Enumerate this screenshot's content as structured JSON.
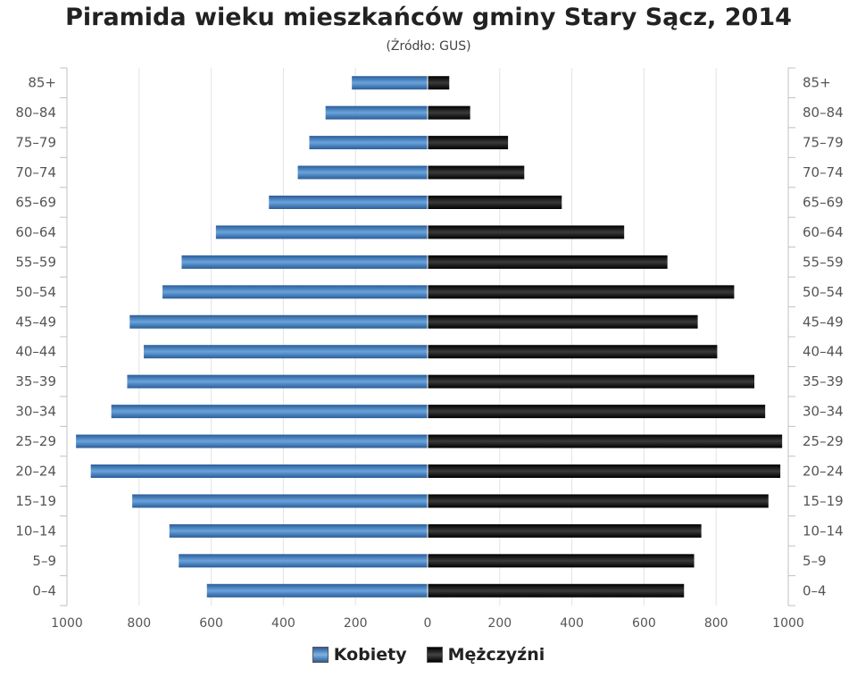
{
  "title": "Piramida wieku mieszkańców gminy Stary Sącz, 2014",
  "subtitle": "(Źródło: GUS)",
  "legend": {
    "female": "Kobiety",
    "male": "Mężczyźni"
  },
  "colors": {
    "female": "#3f7ec2",
    "male": "#111111",
    "grid": "#e3e3e3",
    "axis": "#c0c0c0",
    "text": "#555555"
  },
  "chart_data": {
    "type": "bar",
    "orientation": "horizontal-population-pyramid",
    "categories": [
      "0–4",
      "5–9",
      "10–14",
      "15–19",
      "20–24",
      "25–29",
      "30–34",
      "35–39",
      "40–44",
      "45–49",
      "50–54",
      "55–59",
      "60–64",
      "65–69",
      "70–74",
      "75–79",
      "80–84",
      "85+"
    ],
    "series": [
      {
        "name": "Kobiety",
        "values": [
          612,
          690,
          716,
          819,
          934,
          975,
          877,
          833,
          787,
          826,
          735,
          682,
          587,
          440,
          360,
          328,
          283,
          210
        ]
      },
      {
        "name": "Mężczyźni",
        "values": [
          711,
          739,
          759,
          945,
          978,
          983,
          936,
          906,
          803,
          749,
          850,
          665,
          545,
          372,
          268,
          223,
          118,
          60
        ]
      }
    ],
    "xlim": [
      -1000,
      1000
    ],
    "xticks": [
      "1000",
      "800",
      "600",
      "400",
      "200",
      "0",
      "200",
      "400",
      "600",
      "800",
      "1000"
    ],
    "grid": true,
    "legend_position": "bottom"
  }
}
